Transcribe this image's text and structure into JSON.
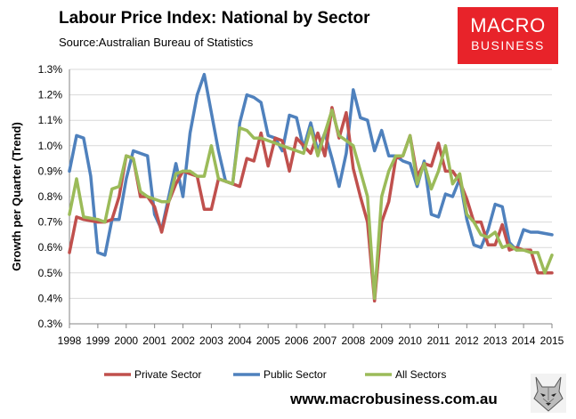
{
  "header": {
    "title": "Labour Price Index: National by Sector",
    "source": "Source:Australian Bureau of Statistics"
  },
  "logo": {
    "line1": "MACRO",
    "line2": "BUSINESS"
  },
  "footer": {
    "website": "www.macrobusiness.com.au",
    "mascot_icon": "wolf-logo-icon"
  },
  "chart_data": {
    "type": "line",
    "title": "Labour Price Index: National by Sector",
    "ylabel": "Growth per Quarter (Trend)",
    "xlim": [
      1998,
      2015
    ],
    "ylim": [
      0.3,
      1.3
    ],
    "x_ticks": [
      "1998",
      "1999",
      "2000",
      "2001",
      "2002",
      "2003",
      "2004",
      "2005",
      "2006",
      "2007",
      "2008",
      "2009",
      "2010",
      "2011",
      "2012",
      "2013",
      "2014",
      "2015"
    ],
    "y_ticks": [
      "0.3%",
      "0.4%",
      "0.5%",
      "0.6%",
      "0.7%",
      "0.8%",
      "0.9%",
      "1.0%",
      "1.1%",
      "1.2%",
      "1.3%"
    ],
    "grid": "horizontal",
    "legend": "bottom",
    "series": [
      {
        "name": "Private Sector",
        "color": "#c0504d",
        "points": [
          [
            1998.0,
            0.58
          ],
          [
            1998.25,
            0.72
          ],
          [
            1998.5,
            0.71
          ],
          [
            1999.0,
            0.7
          ],
          [
            1999.25,
            0.7
          ],
          [
            1999.5,
            0.71
          ],
          [
            1999.75,
            0.8
          ],
          [
            2000.0,
            0.96
          ],
          [
            2000.25,
            0.95
          ],
          [
            2000.5,
            0.8
          ],
          [
            2000.75,
            0.8
          ],
          [
            2001.0,
            0.76
          ],
          [
            2001.25,
            0.66
          ],
          [
            2001.5,
            0.78
          ],
          [
            2001.75,
            0.85
          ],
          [
            2002.0,
            0.9
          ],
          [
            2002.25,
            0.89
          ],
          [
            2002.5,
            0.88
          ],
          [
            2002.75,
            0.75
          ],
          [
            2003.0,
            0.75
          ],
          [
            2003.25,
            0.87
          ],
          [
            2003.5,
            0.86
          ],
          [
            2003.75,
            0.85
          ],
          [
            2004.0,
            0.84
          ],
          [
            2004.25,
            0.95
          ],
          [
            2004.5,
            0.94
          ],
          [
            2004.75,
            1.05
          ],
          [
            2005.0,
            0.92
          ],
          [
            2005.25,
            1.03
          ],
          [
            2005.5,
            1.02
          ],
          [
            2005.75,
            0.9
          ],
          [
            2006.0,
            1.03
          ],
          [
            2006.25,
            1.0
          ],
          [
            2006.5,
            0.97
          ],
          [
            2006.75,
            1.05
          ],
          [
            2007.0,
            0.96
          ],
          [
            2007.25,
            1.15
          ],
          [
            2007.5,
            1.03
          ],
          [
            2007.75,
            1.13
          ],
          [
            2008.0,
            0.91
          ],
          [
            2008.25,
            0.8
          ],
          [
            2008.5,
            0.7
          ],
          [
            2008.75,
            0.39
          ],
          [
            2009.0,
            0.7
          ],
          [
            2009.25,
            0.78
          ],
          [
            2009.5,
            0.95
          ],
          [
            2009.75,
            0.96
          ],
          [
            2010.0,
            1.04
          ],
          [
            2010.25,
            0.88
          ],
          [
            2010.5,
            0.93
          ],
          [
            2010.75,
            0.92
          ],
          [
            2011.0,
            1.01
          ],
          [
            2011.25,
            0.9
          ],
          [
            2011.5,
            0.9
          ],
          [
            2011.75,
            0.86
          ],
          [
            2012.0,
            0.79
          ],
          [
            2012.25,
            0.7
          ],
          [
            2012.5,
            0.7
          ],
          [
            2012.75,
            0.61
          ],
          [
            2013.0,
            0.61
          ],
          [
            2013.25,
            0.69
          ],
          [
            2013.5,
            0.59
          ],
          [
            2013.75,
            0.6
          ],
          [
            2014.0,
            0.59
          ],
          [
            2014.25,
            0.59
          ],
          [
            2014.5,
            0.5
          ],
          [
            2014.75,
            0.5
          ],
          [
            2015.0,
            0.5
          ]
        ]
      },
      {
        "name": "Public Sector",
        "color": "#4f81bd",
        "points": [
          [
            1998.0,
            0.9
          ],
          [
            1998.25,
            1.04
          ],
          [
            1998.5,
            1.03
          ],
          [
            1998.75,
            0.88
          ],
          [
            1999.0,
            0.58
          ],
          [
            1999.25,
            0.57
          ],
          [
            1999.5,
            0.71
          ],
          [
            1999.75,
            0.71
          ],
          [
            2000.0,
            0.87
          ],
          [
            2000.25,
            0.98
          ],
          [
            2000.5,
            0.97
          ],
          [
            2000.75,
            0.96
          ],
          [
            2001.0,
            0.73
          ],
          [
            2001.25,
            0.67
          ],
          [
            2001.5,
            0.8
          ],
          [
            2001.75,
            0.93
          ],
          [
            2002.0,
            0.8
          ],
          [
            2002.25,
            1.05
          ],
          [
            2002.5,
            1.2
          ],
          [
            2002.75,
            1.28
          ],
          [
            2003.0,
            1.13
          ],
          [
            2003.25,
            0.98
          ],
          [
            2003.5,
            0.86
          ],
          [
            2003.75,
            0.85
          ],
          [
            2004.0,
            1.09
          ],
          [
            2004.25,
            1.2
          ],
          [
            2004.5,
            1.19
          ],
          [
            2004.75,
            1.17
          ],
          [
            2005.0,
            1.04
          ],
          [
            2005.25,
            1.03
          ],
          [
            2005.5,
            0.98
          ],
          [
            2005.75,
            1.12
          ],
          [
            2006.0,
            1.11
          ],
          [
            2006.25,
            0.99
          ],
          [
            2006.5,
            1.09
          ],
          [
            2006.75,
            0.98
          ],
          [
            2007.0,
            1.05
          ],
          [
            2007.25,
            0.95
          ],
          [
            2007.5,
            0.84
          ],
          [
            2007.75,
            0.97
          ],
          [
            2008.0,
            1.22
          ],
          [
            2008.25,
            1.11
          ],
          [
            2008.5,
            1.1
          ],
          [
            2008.75,
            0.98
          ],
          [
            2009.0,
            1.06
          ],
          [
            2009.25,
            0.96
          ],
          [
            2009.5,
            0.96
          ],
          [
            2009.75,
            0.94
          ],
          [
            2010.0,
            0.93
          ],
          [
            2010.25,
            0.84
          ],
          [
            2010.5,
            0.94
          ],
          [
            2010.75,
            0.73
          ],
          [
            2011.0,
            0.72
          ],
          [
            2011.25,
            0.81
          ],
          [
            2011.5,
            0.8
          ],
          [
            2011.75,
            0.87
          ],
          [
            2012.0,
            0.71
          ],
          [
            2012.25,
            0.61
          ],
          [
            2012.5,
            0.6
          ],
          [
            2012.75,
            0.67
          ],
          [
            2013.0,
            0.77
          ],
          [
            2013.25,
            0.76
          ],
          [
            2013.5,
            0.62
          ],
          [
            2013.75,
            0.59
          ],
          [
            2014.0,
            0.67
          ],
          [
            2014.25,
            0.66
          ],
          [
            2014.5,
            0.66
          ],
          [
            2015.0,
            0.65
          ]
        ]
      },
      {
        "name": "All Sectors",
        "color": "#9bbb59",
        "points": [
          [
            1998.0,
            0.73
          ],
          [
            1998.25,
            0.87
          ],
          [
            1998.5,
            0.72
          ],
          [
            1999.0,
            0.71
          ],
          [
            1999.25,
            0.7
          ],
          [
            1999.5,
            0.83
          ],
          [
            1999.75,
            0.84
          ],
          [
            2000.0,
            0.96
          ],
          [
            2000.25,
            0.95
          ],
          [
            2000.5,
            0.82
          ],
          [
            2000.75,
            0.8
          ],
          [
            2001.0,
            0.79
          ],
          [
            2001.25,
            0.78
          ],
          [
            2001.5,
            0.78
          ],
          [
            2001.75,
            0.89
          ],
          [
            2002.0,
            0.9
          ],
          [
            2002.25,
            0.9
          ],
          [
            2002.5,
            0.88
          ],
          [
            2002.75,
            0.88
          ],
          [
            2003.0,
            1.0
          ],
          [
            2003.25,
            0.87
          ],
          [
            2003.5,
            0.86
          ],
          [
            2003.75,
            0.85
          ],
          [
            2004.0,
            1.07
          ],
          [
            2004.25,
            1.06
          ],
          [
            2004.5,
            1.03
          ],
          [
            2004.75,
            1.03
          ],
          [
            2005.0,
            1.02
          ],
          [
            2005.25,
            1.01
          ],
          [
            2005.5,
            1.0
          ],
          [
            2005.75,
            0.99
          ],
          [
            2006.0,
            0.98
          ],
          [
            2006.25,
            0.97
          ],
          [
            2006.5,
            1.07
          ],
          [
            2006.75,
            0.96
          ],
          [
            2007.0,
            1.05
          ],
          [
            2007.25,
            1.14
          ],
          [
            2007.5,
            1.04
          ],
          [
            2007.75,
            1.02
          ],
          [
            2008.0,
            1.0
          ],
          [
            2008.25,
            0.9
          ],
          [
            2008.5,
            0.8
          ],
          [
            2008.75,
            0.4
          ],
          [
            2009.0,
            0.8
          ],
          [
            2009.25,
            0.9
          ],
          [
            2009.5,
            0.96
          ],
          [
            2009.75,
            0.96
          ],
          [
            2010.0,
            1.04
          ],
          [
            2010.25,
            0.85
          ],
          [
            2010.5,
            0.93
          ],
          [
            2010.75,
            0.83
          ],
          [
            2011.0,
            0.9
          ],
          [
            2011.25,
            1.0
          ],
          [
            2011.5,
            0.85
          ],
          [
            2011.75,
            0.89
          ],
          [
            2012.0,
            0.73
          ],
          [
            2012.25,
            0.7
          ],
          [
            2012.5,
            0.65
          ],
          [
            2012.75,
            0.64
          ],
          [
            2013.0,
            0.66
          ],
          [
            2013.25,
            0.6
          ],
          [
            2013.5,
            0.61
          ],
          [
            2013.75,
            0.59
          ],
          [
            2014.0,
            0.59
          ],
          [
            2014.25,
            0.58
          ],
          [
            2014.5,
            0.58
          ],
          [
            2014.75,
            0.5
          ],
          [
            2015.0,
            0.57
          ]
        ]
      }
    ]
  }
}
